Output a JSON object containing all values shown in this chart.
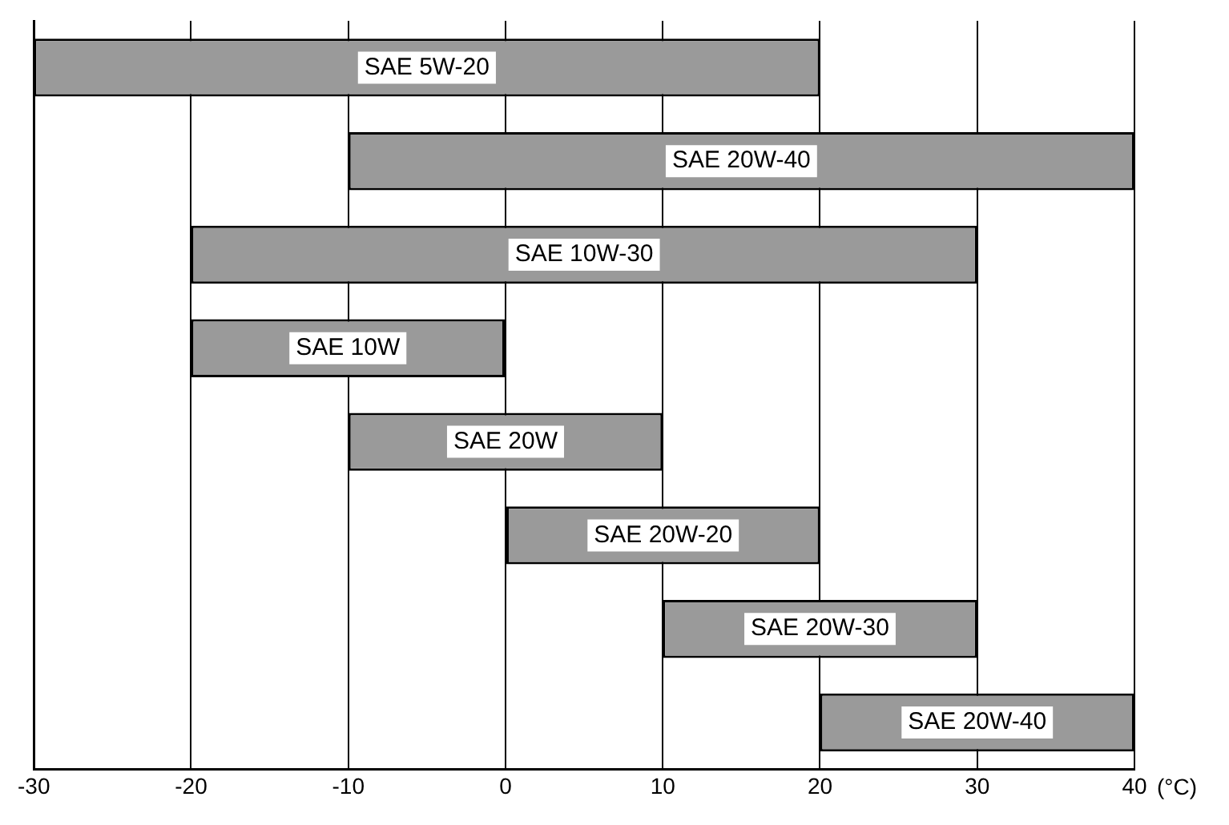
{
  "chart_data": {
    "type": "bar",
    "orientation": "horizontal",
    "categories": [
      "SAE 5W-20",
      "SAE 20W-40",
      "SAE 10W-30",
      "SAE 10W",
      "SAE 20W",
      "SAE 20W-20",
      "SAE 20W-30",
      "SAE 20W-40"
    ],
    "base": [
      -30,
      -10,
      -20,
      -20,
      -10,
      0,
      10,
      20
    ],
    "values": [
      50,
      50,
      50,
      20,
      20,
      20,
      20,
      20
    ],
    "color": "#9a9a9a",
    "xlim": [
      -30,
      40
    ],
    "xticks": [
      -30,
      -20,
      -10,
      0,
      10,
      20,
      30,
      40
    ],
    "xlabel": "(°C)",
    "grid": "x"
  }
}
